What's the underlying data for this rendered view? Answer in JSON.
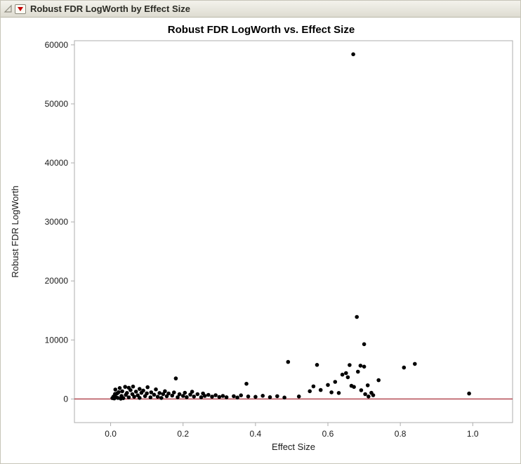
{
  "header": {
    "title": "Robust FDR LogWorth by Effect Size",
    "icons": [
      {
        "name": "disclosure-triangle-icon",
        "glyph": "outline-triangle"
      },
      {
        "name": "red-triangle-menu-icon",
        "glyph": "red-filled-down-triangle"
      }
    ],
    "colors": {
      "bar_background_top": "#f3f2ec",
      "bar_background_bottom": "#dedcd1",
      "bar_border": "#b9b7a8",
      "red_triangle": "#c40000",
      "title_text": "#2b2b25"
    }
  },
  "chart_data": {
    "type": "scatter",
    "title": "Robust FDR LogWorth vs. Effect Size",
    "xlabel": "Effect Size",
    "ylabel": "Robust FDR LogWorth",
    "xlim": [
      -0.1,
      1.11
    ],
    "ylim": [
      -4000,
      60700
    ],
    "grid": false,
    "legend": "none",
    "xticks": {
      "values": [
        0,
        0.2,
        0.4,
        0.6,
        0.8,
        1.0
      ],
      "labels": [
        "0.0",
        "0.2",
        "0.4",
        "0.6",
        "0.8",
        "1.0"
      ]
    },
    "yticks": {
      "values": [
        0,
        10000,
        20000,
        30000,
        40000,
        50000,
        60000
      ],
      "labels": [
        "0",
        "10000",
        "20000",
        "30000",
        "40000",
        "50000",
        "60000"
      ]
    },
    "refline": {
      "y": 0,
      "color": "#a8303a"
    },
    "point_color": "#000000",
    "frame_color": "#adadad",
    "points": [
      [
        0.005,
        150
      ],
      [
        0.008,
        420
      ],
      [
        0.01,
        90
      ],
      [
        0.012,
        850
      ],
      [
        0.013,
        1600
      ],
      [
        0.015,
        300
      ],
      [
        0.018,
        950
      ],
      [
        0.02,
        180
      ],
      [
        0.022,
        1150
      ],
      [
        0.025,
        1850
      ],
      [
        0.028,
        60
      ],
      [
        0.03,
        520
      ],
      [
        0.032,
        1300
      ],
      [
        0.035,
        140
      ],
      [
        0.04,
        2050
      ],
      [
        0.042,
        700
      ],
      [
        0.045,
        1020
      ],
      [
        0.05,
        1900
      ],
      [
        0.05,
        280
      ],
      [
        0.055,
        1500
      ],
      [
        0.06,
        820
      ],
      [
        0.062,
        2100
      ],
      [
        0.065,
        380
      ],
      [
        0.07,
        1250
      ],
      [
        0.075,
        620
      ],
      [
        0.08,
        1700
      ],
      [
        0.08,
        190
      ],
      [
        0.085,
        1040
      ],
      [
        0.09,
        1420
      ],
      [
        0.095,
        480
      ],
      [
        0.1,
        950
      ],
      [
        0.102,
        2000
      ],
      [
        0.11,
        280
      ],
      [
        0.112,
        1130
      ],
      [
        0.12,
        720
      ],
      [
        0.125,
        1620
      ],
      [
        0.13,
        380
      ],
      [
        0.135,
        1010
      ],
      [
        0.14,
        180
      ],
      [
        0.145,
        830
      ],
      [
        0.15,
        1320
      ],
      [
        0.155,
        470
      ],
      [
        0.16,
        940
      ],
      [
        0.17,
        580
      ],
      [
        0.175,
        1120
      ],
      [
        0.18,
        3480
      ],
      [
        0.185,
        290
      ],
      [
        0.19,
        810
      ],
      [
        0.2,
        520
      ],
      [
        0.205,
        1060
      ],
      [
        0.21,
        300
      ],
      [
        0.22,
        740
      ],
      [
        0.225,
        1230
      ],
      [
        0.23,
        410
      ],
      [
        0.24,
        820
      ],
      [
        0.25,
        290
      ],
      [
        0.255,
        930
      ],
      [
        0.26,
        520
      ],
      [
        0.27,
        700
      ],
      [
        0.28,
        390
      ],
      [
        0.29,
        640
      ],
      [
        0.3,
        340
      ],
      [
        0.31,
        520
      ],
      [
        0.32,
        290
      ],
      [
        0.34,
        470
      ],
      [
        0.35,
        240
      ],
      [
        0.36,
        620
      ],
      [
        0.375,
        2580
      ],
      [
        0.38,
        420
      ],
      [
        0.4,
        360
      ],
      [
        0.42,
        540
      ],
      [
        0.44,
        310
      ],
      [
        0.46,
        470
      ],
      [
        0.48,
        240
      ],
      [
        0.49,
        6280
      ],
      [
        0.52,
        420
      ],
      [
        0.55,
        1320
      ],
      [
        0.56,
        2140
      ],
      [
        0.57,
        5780
      ],
      [
        0.58,
        1520
      ],
      [
        0.6,
        2380
      ],
      [
        0.61,
        1130
      ],
      [
        0.62,
        2900
      ],
      [
        0.63,
        1020
      ],
      [
        0.64,
        4120
      ],
      [
        0.65,
        4380
      ],
      [
        0.655,
        3680
      ],
      [
        0.66,
        5750
      ],
      [
        0.665,
        2230
      ],
      [
        0.67,
        58400
      ],
      [
        0.672,
        2040
      ],
      [
        0.68,
        13900
      ],
      [
        0.683,
        4620
      ],
      [
        0.69,
        5650
      ],
      [
        0.692,
        1480
      ],
      [
        0.7,
        9280
      ],
      [
        0.7,
        5480
      ],
      [
        0.703,
        820
      ],
      [
        0.71,
        2310
      ],
      [
        0.712,
        430
      ],
      [
        0.72,
        1040
      ],
      [
        0.725,
        640
      ],
      [
        0.74,
        3180
      ],
      [
        0.81,
        5320
      ],
      [
        0.84,
        5940
      ],
      [
        0.99,
        920
      ]
    ]
  }
}
